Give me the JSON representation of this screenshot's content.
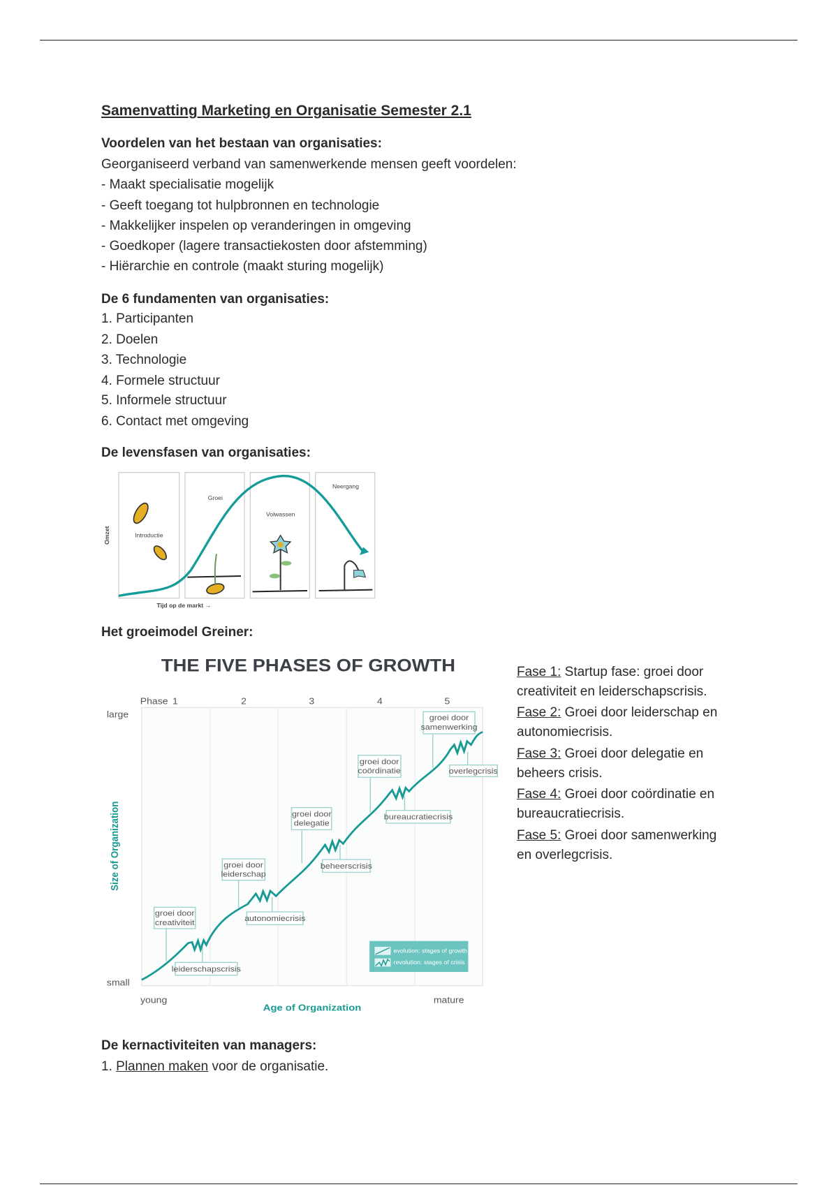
{
  "title": "Samenvatting Marketing en Organisatie Semester 2.1",
  "voordelen": {
    "heading": "Voordelen van het bestaan van organisaties:",
    "intro": "Georganiseerd verband van samenwerkende mensen geeft voordelen:",
    "items": [
      "- Maakt specialisatie mogelijk",
      "- Geeft toegang tot hulpbronnen en technologie",
      "- Makkelijker inspelen op veranderingen in omgeving",
      "- Goedkoper (lagere transactiekosten door afstemming)",
      "- Hiërarchie en controle (maakt sturing mogelijk)"
    ]
  },
  "fundamenten": {
    "heading": "De 6 fundamenten van organisaties:",
    "items": [
      "1. Participanten",
      "2. Doelen",
      "3. Technologie",
      "4. Formele structuur",
      "5. Informele structuur",
      "6. Contact met omgeving"
    ]
  },
  "levensfasen": {
    "heading": "De levensfasen van organisaties:",
    "figure": {
      "y_label": "Omzet",
      "x_label": "Tijd op de markt →",
      "phases": [
        "Introductie",
        "Groei",
        "Volwassen",
        "Neergang"
      ]
    }
  },
  "greiner": {
    "heading": "Het groeimodel Greiner:",
    "figure": {
      "title": "THE FIVE PHASES OF GROWTH",
      "phase_prefix": "Phase",
      "phases": [
        "1",
        "2",
        "3",
        "4",
        "5"
      ],
      "y_top": "large",
      "y_bottom": "small",
      "x_left": "young",
      "x_right": "mature",
      "x_label": "Age of Organization",
      "y_label": "Size of Organization",
      "growth_boxes": [
        [
          "groei door",
          "creativiteit"
        ],
        [
          "groei door",
          "leiderschap"
        ],
        [
          "groei door",
          "delegatie"
        ],
        [
          "groei door",
          "coördinatie"
        ],
        [
          "groei door",
          "samenwerking"
        ]
      ],
      "crisis_boxes": [
        "leiderschapscrisis",
        "autonomiecrisis",
        "beheerscrisis",
        "bureaucratiecrisis",
        "overlegcrisis"
      ],
      "legend": [
        "evolution: stages of growth",
        "revolution: stages of crisis"
      ],
      "accent_color": "#1a9a94"
    },
    "fases": [
      {
        "label": "Fase 1:",
        "text": " Startup fase: groei door",
        "cont": "creativiteit en leiderschapscrisis."
      },
      {
        "label": "Fase 2:",
        "text": " Groei door leiderschap en",
        "cont": "autonomiecrisis."
      },
      {
        "label": "Fase 3:",
        "text": " Groei door delegatie en",
        "cont": "beheers crisis."
      },
      {
        "label": "Fase 4:",
        "text": " Groei door coördinatie en",
        "cont": "bureaucratiecrisis."
      },
      {
        "label": "Fase 5:",
        "text": " Groei door samenwerking",
        "cont": "en overlegcrisis."
      }
    ]
  },
  "kernactiviteiten": {
    "heading": "De kernactiviteiten van managers:",
    "item_prefix": "1. ",
    "item_link": "Plannen maken",
    "item_rest": " voor de organisatie."
  }
}
